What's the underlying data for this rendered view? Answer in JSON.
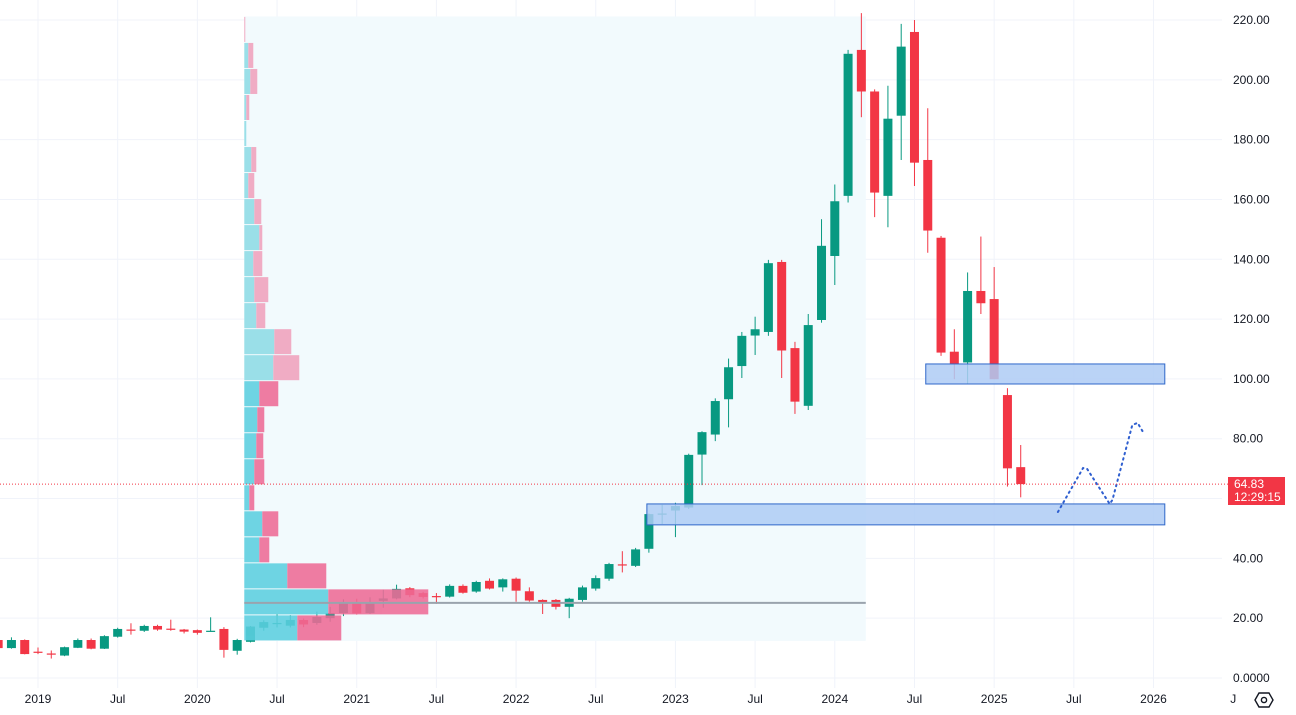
{
  "chart_data": {
    "type": "candlestick",
    "interval": "monthly",
    "colors": {
      "up": "#089981",
      "down": "#f23645",
      "grid": "#f0f3fa",
      "zone_fill": "#aecbf5",
      "zone_border": "#2f67c9",
      "forecast": "#2f5fd0",
      "poc": "#9aa3ad",
      "profile_bg": "#f2fafd",
      "va_up": "#5ccfe0",
      "va_down": "#ee6b96",
      "up_light": "#8fdce6",
      "down_light": "#f0a2bd"
    },
    "ylim": [
      0,
      220
    ],
    "y_ticks": [
      {
        "value": 220,
        "label": "220.00"
      },
      {
        "value": 200,
        "label": "200.00"
      },
      {
        "value": 180,
        "label": "180.00"
      },
      {
        "value": 160,
        "label": "160.00"
      },
      {
        "value": 140,
        "label": "140.00"
      },
      {
        "value": 120,
        "label": "120.00"
      },
      {
        "value": 100,
        "label": "100.00"
      },
      {
        "value": 80,
        "label": "80.00"
      },
      {
        "value": 60,
        "label": ""
      },
      {
        "value": 40,
        "label": "40.00"
      },
      {
        "value": 20,
        "label": "20.00"
      },
      {
        "value": 0,
        "label": "0.0000"
      }
    ],
    "x_ticks": [
      {
        "date": "2019-01",
        "label": "2019"
      },
      {
        "date": "2019-07",
        "label": "Jul"
      },
      {
        "date": "2020-01",
        "label": "2020"
      },
      {
        "date": "2020-07",
        "label": "Jul"
      },
      {
        "date": "2021-01",
        "label": "2021"
      },
      {
        "date": "2021-07",
        "label": "Jul"
      },
      {
        "date": "2022-01",
        "label": "2022"
      },
      {
        "date": "2022-07",
        "label": "Jul"
      },
      {
        "date": "2023-01",
        "label": "2023"
      },
      {
        "date": "2023-07",
        "label": "Jul"
      },
      {
        "date": "2024-01",
        "label": "2024"
      },
      {
        "date": "2024-07",
        "label": "Jul"
      },
      {
        "date": "2025-01",
        "label": "2025"
      },
      {
        "date": "2025-07",
        "label": "Jul"
      },
      {
        "date": "2026-01",
        "label": "2026"
      },
      {
        "date": "2026-07",
        "label": "J"
      }
    ],
    "candles_columns": [
      "date",
      "open",
      "high",
      "low",
      "close"
    ],
    "candles": [
      [
        "2018-10",
        12.7,
        13.5,
        9.5,
        10.0
      ],
      [
        "2018-11",
        10.0,
        13.6,
        9.8,
        12.7
      ],
      [
        "2018-12",
        12.7,
        12.9,
        7.9,
        8.0
      ],
      [
        "2019-01",
        8.8,
        10.2,
        8.0,
        8.6
      ],
      [
        "2019-02",
        8.2,
        9.2,
        6.5,
        7.8
      ],
      [
        "2019-03",
        7.5,
        10.5,
        7.3,
        10.3
      ],
      [
        "2019-04",
        10.1,
        13.2,
        10.0,
        12.7
      ],
      [
        "2019-05",
        12.7,
        13.2,
        9.6,
        9.8
      ],
      [
        "2019-06",
        9.8,
        14.3,
        9.7,
        14.0
      ],
      [
        "2019-07",
        13.8,
        16.8,
        13.5,
        16.4
      ],
      [
        "2019-08",
        16.2,
        18.3,
        14.5,
        15.9
      ],
      [
        "2019-09",
        15.8,
        17.8,
        15.4,
        17.4
      ],
      [
        "2019-10",
        17.4,
        17.8,
        15.8,
        16.2
      ],
      [
        "2019-11",
        16.5,
        19.5,
        15.8,
        16.3
      ],
      [
        "2019-12",
        16.2,
        16.4,
        14.9,
        15.5
      ],
      [
        "2020-01",
        16.0,
        16.2,
        14.5,
        15.1
      ],
      [
        "2020-02",
        15.6,
        20.3,
        15.5,
        15.8
      ],
      [
        "2020-03",
        16.4,
        17.0,
        6.8,
        9.4
      ],
      [
        "2020-04",
        9.1,
        13.1,
        7.8,
        12.7
      ],
      [
        "2020-05",
        12.1,
        17.4,
        11.9,
        17.2
      ],
      [
        "2020-06",
        16.8,
        19.3,
        15.8,
        18.7
      ],
      [
        "2020-07",
        18.1,
        21.3,
        16.9,
        18.4
      ],
      [
        "2020-08",
        17.5,
        21.0,
        16.9,
        19.4
      ],
      [
        "2020-09",
        19.4,
        19.9,
        17.0,
        17.9
      ],
      [
        "2020-10",
        18.4,
        22.2,
        17.8,
        20.4
      ],
      [
        "2020-11",
        20.0,
        23.8,
        18.8,
        21.7
      ],
      [
        "2020-12",
        21.7,
        26.3,
        20.7,
        25.0
      ],
      [
        "2021-01",
        25.0,
        26.5,
        21.2,
        21.6
      ],
      [
        "2021-02",
        21.7,
        27.0,
        21.4,
        25.0
      ],
      [
        "2021-03",
        25.8,
        29.5,
        23.5,
        26.6
      ],
      [
        "2021-04",
        26.6,
        31.2,
        26.3,
        29.8
      ],
      [
        "2021-05",
        30.0,
        30.4,
        27.0,
        27.7
      ],
      [
        "2021-06",
        28.4,
        28.8,
        26.6,
        27.1
      ],
      [
        "2021-07",
        27.4,
        28.4,
        24.8,
        27.2
      ],
      [
        "2021-08",
        27.2,
        31.3,
        26.9,
        30.8
      ],
      [
        "2021-09",
        30.8,
        31.3,
        28.2,
        28.5
      ],
      [
        "2021-10",
        28.9,
        32.5,
        28.5,
        32.1
      ],
      [
        "2021-11",
        32.5,
        33.3,
        29.6,
        29.9
      ],
      [
        "2021-12",
        30.3,
        33.3,
        28.9,
        33.0
      ],
      [
        "2022-01",
        33.2,
        33.6,
        25.5,
        29.2
      ],
      [
        "2022-02",
        29.0,
        30.3,
        25.5,
        25.9
      ],
      [
        "2022-03",
        26.1,
        26.3,
        21.4,
        25.4
      ],
      [
        "2022-04",
        26.1,
        26.4,
        22.9,
        23.8
      ],
      [
        "2022-05",
        23.8,
        26.8,
        20.0,
        26.5
      ],
      [
        "2022-06",
        26.1,
        30.9,
        25.5,
        30.3
      ],
      [
        "2022-07",
        29.9,
        34.3,
        29.2,
        33.4
      ],
      [
        "2022-08",
        33.2,
        38.5,
        32.5,
        38.1
      ],
      [
        "2022-09",
        38.0,
        42.4,
        35.3,
        37.7
      ],
      [
        "2022-10",
        37.5,
        43.5,
        37.1,
        43.0
      ],
      [
        "2022-11",
        43.2,
        55.0,
        41.9,
        54.8
      ],
      [
        "2022-12",
        54.6,
        57.9,
        51.5,
        55.0
      ],
      [
        "2023-01",
        56.0,
        58.6,
        47.1,
        57.5
      ],
      [
        "2023-02",
        57.0,
        75.0,
        56.5,
        74.6
      ],
      [
        "2023-03",
        74.7,
        82.5,
        64.5,
        82.2
      ],
      [
        "2023-04",
        81.4,
        93.5,
        79.2,
        92.6
      ],
      [
        "2023-05",
        93.2,
        106.8,
        83.8,
        103.9
      ],
      [
        "2023-06",
        104.3,
        115.7,
        100.3,
        114.4
      ],
      [
        "2023-07",
        114.5,
        120.8,
        108.0,
        116.6
      ],
      [
        "2023-08",
        115.7,
        139.8,
        114.4,
        138.7
      ],
      [
        "2023-09",
        139.1,
        139.8,
        100.3,
        109.5
      ],
      [
        "2023-10",
        110.3,
        112.4,
        88.3,
        92.4
      ],
      [
        "2023-11",
        91.0,
        121.7,
        89.6,
        118.0
      ],
      [
        "2023-12",
        119.7,
        153.4,
        118.8,
        144.5
      ],
      [
        "2024-01",
        141.1,
        165.0,
        131.4,
        159.4
      ],
      [
        "2024-02",
        161.2,
        210.0,
        159.0,
        208.7
      ],
      [
        "2024-03",
        210.0,
        222.3,
        187.5,
        196.1
      ],
      [
        "2024-04",
        196.1,
        196.8,
        154.1,
        162.3
      ],
      [
        "2024-05",
        161.2,
        198.0,
        150.7,
        187.0
      ],
      [
        "2024-06",
        188.0,
        218.7,
        173.2,
        211.1
      ],
      [
        "2024-07",
        216.0,
        220.0,
        164.5,
        172.3
      ],
      [
        "2024-08",
        173.2,
        190.5,
        142.2,
        149.6
      ],
      [
        "2024-09",
        147.2,
        147.8,
        107.7,
        108.8
      ],
      [
        "2024-10",
        109.1,
        116.6,
        99.9,
        105.0
      ],
      [
        "2024-11",
        105.5,
        135.6,
        98.3,
        129.4
      ],
      [
        "2024-12",
        129.4,
        147.6,
        121.7,
        125.3
      ],
      [
        "2025-01",
        126.7,
        137.4,
        99.9,
        99.9
      ],
      [
        "2025-02",
        94.6,
        96.9,
        64.0,
        70.1
      ],
      [
        "2025-03",
        70.5,
        77.9,
        60.4,
        64.83
      ]
    ],
    "volume_profile": {
      "start": "2020-05-01",
      "end": "2024-03-25",
      "price_low": 12.4,
      "row_size": 8.7,
      "poc_price": 25.1,
      "rows_columns": [
        "up_volume",
        "down_volume",
        "in_value_area"
      ],
      "rows": [
        [
          53,
          44,
          true
        ],
        [
          84,
          100,
          true
        ],
        [
          43,
          39,
          true
        ],
        [
          15,
          10,
          true
        ],
        [
          18,
          16,
          true
        ],
        [
          5,
          5,
          true
        ],
        [
          10,
          10,
          true
        ],
        [
          12,
          7,
          true
        ],
        [
          13,
          7,
          true
        ],
        [
          15,
          19,
          true
        ],
        [
          29,
          26,
          false
        ],
        [
          30,
          17,
          false
        ],
        [
          12,
          9,
          false
        ],
        [
          10,
          14,
          false
        ],
        [
          9,
          9,
          false
        ],
        [
          15,
          3,
          false
        ],
        [
          10,
          7,
          false
        ],
        [
          4,
          6,
          false
        ],
        [
          7,
          5,
          false
        ],
        [
          2,
          0,
          false
        ],
        [
          2,
          3,
          false
        ],
        [
          6,
          7,
          false
        ],
        [
          4,
          5,
          false
        ],
        [
          0,
          1,
          false
        ]
      ]
    },
    "zones": [
      {
        "start": "2024-08",
        "end": "2026-02",
        "top": 105.0,
        "bottom": 98.3
      },
      {
        "start": "2022-11",
        "end": "2026-02",
        "top": 58.2,
        "bottom": 51.2
      }
    ],
    "forecast_path": [
      [
        "2025-06-09",
        55.5
      ],
      [
        "2025-08-06",
        70.2
      ],
      [
        "2025-08-15",
        69.9
      ],
      [
        "2025-10-06",
        58.2
      ],
      [
        "2025-10-12",
        59.5
      ],
      [
        "2025-11-27",
        84.6
      ],
      [
        "2025-12-09",
        85.3
      ],
      [
        "2025-12-21",
        82.3
      ]
    ],
    "last_price": {
      "value": 64.83,
      "label": "64.83",
      "countdown": "12:29:15"
    }
  },
  "toolbar": {
    "settings_icon": "gear-icon"
  }
}
